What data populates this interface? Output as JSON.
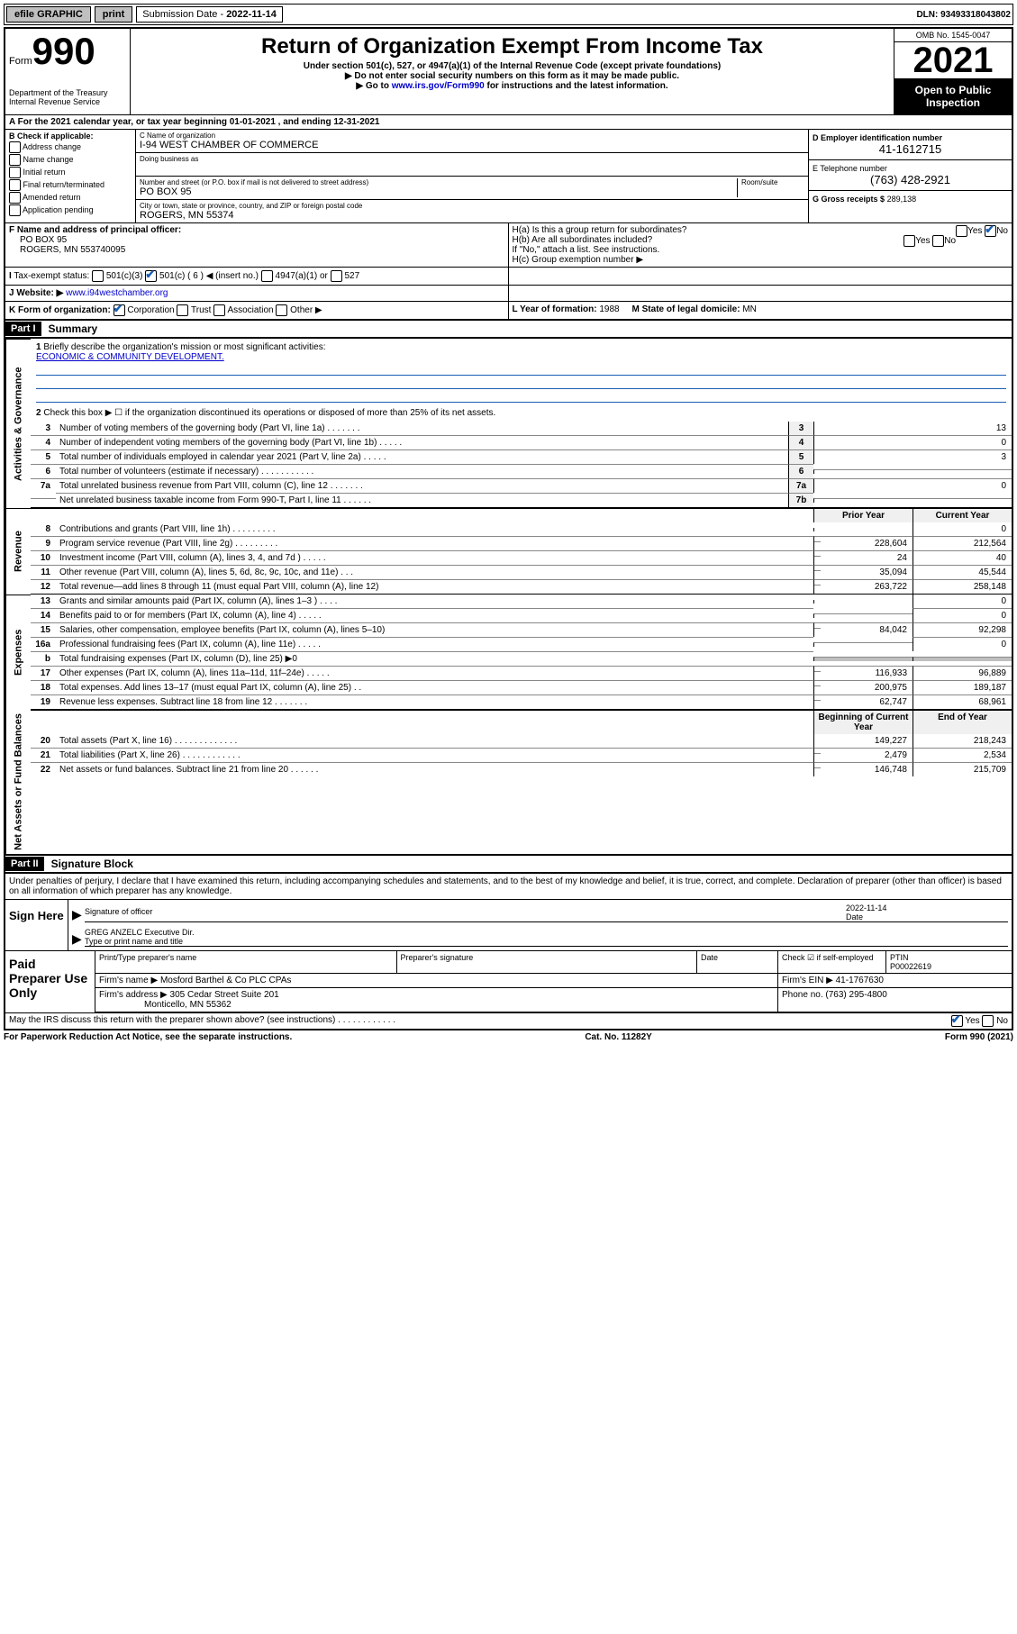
{
  "top_bar": {
    "efile": "efile GRAPHIC",
    "print": "print",
    "submission_label": "Submission Date",
    "submission_date": "2022-11-14",
    "dln_label": "DLN:",
    "dln": "93493318043802"
  },
  "header": {
    "form_word": "Form",
    "form_num": "990",
    "dept": "Department of the Treasury",
    "irs": "Internal Revenue Service",
    "title": "Return of Organization Exempt From Income Tax",
    "sub1": "Under section 501(c), 527, or 4947(a)(1) of the Internal Revenue Code (except private foundations)",
    "sub2": "▶ Do not enter social security numbers on this form as it may be made public.",
    "sub3_pre": "▶ Go to ",
    "sub3_link": "www.irs.gov/Form990",
    "sub3_post": " for instructions and the latest information.",
    "omb": "OMB No. 1545-0047",
    "year": "2021",
    "inspect": "Open to Public Inspection"
  },
  "section_a": {
    "line": "For the 2021 calendar year, or tax year beginning 01-01-2021   , and ending 12-31-2021",
    "b_label": "B Check if applicable:",
    "checks": [
      "Address change",
      "Name change",
      "Initial return",
      "Final return/terminated",
      "Amended return",
      "Application pending"
    ],
    "c_name_label": "C Name of organization",
    "c_name": "I-94 WEST CHAMBER OF COMMERCE",
    "dba_label": "Doing business as",
    "street_label": "Number and street (or P.O. box if mail is not delivered to street address)",
    "room_label": "Room/suite",
    "street": "PO BOX 95",
    "city_label": "City or town, state or province, country, and ZIP or foreign postal code",
    "city": "ROGERS, MN  55374",
    "d_label": "D Employer identification number",
    "d_val": "41-1612715",
    "e_label": "E Telephone number",
    "e_val": "(763) 428-2921",
    "g_label": "G Gross receipts $",
    "g_val": "289,138",
    "f_label": "F Name and address of principal officer:",
    "f_addr1": "PO BOX 95",
    "f_addr2": "ROGERS, MN  553740095",
    "ha": "H(a)  Is this a group return for subordinates?",
    "hb": "H(b)  Are all subordinates included?",
    "h_note": "If \"No,\" attach a list. See instructions.",
    "hc": "H(c)  Group exemption number ▶",
    "yes": "Yes",
    "no": "No",
    "i_label": "Tax-exempt status:",
    "i_501c3": "501(c)(3)",
    "i_501c": "501(c) ( 6 ) ◀ (insert no.)",
    "i_4947": "4947(a)(1) or",
    "i_527": "527",
    "j_label": "Website: ▶",
    "j_val": "www.i94westchamber.org",
    "k_label": "K Form of organization:",
    "k_opts": [
      "Corporation",
      "Trust",
      "Association",
      "Other ▶"
    ],
    "l_label": "L Year of formation:",
    "l_val": "1988",
    "m_label": "M State of legal domicile:",
    "m_val": "MN"
  },
  "part1": {
    "label": "Part I",
    "title": "Summary",
    "q1": "Briefly describe the organization's mission or most significant activities:",
    "mission": "ECONOMIC & COMMUNITY DEVELOPMENT.",
    "q2": "Check this box ▶ ☐  if the organization discontinued its operations or disposed of more than 25% of its net assets.",
    "vlabels": {
      "gov": "Activities & Governance",
      "rev": "Revenue",
      "exp": "Expenses",
      "net": "Net Assets or Fund Balances"
    },
    "col_prior": "Prior Year",
    "col_current": "Current Year",
    "col_begin": "Beginning of Current Year",
    "col_end": "End of Year",
    "lines_gov": [
      {
        "n": "3",
        "t": "Number of voting members of the governing body (Part VI, line 1a)   .   .   .   .   .   .   .",
        "box": "3",
        "v": "13"
      },
      {
        "n": "4",
        "t": "Number of independent voting members of the governing body (Part VI, line 1b)   .   .   .   .   .",
        "box": "4",
        "v": "0"
      },
      {
        "n": "5",
        "t": "Total number of individuals employed in calendar year 2021 (Part V, line 2a)   .   .   .   .   .",
        "box": "5",
        "v": "3"
      },
      {
        "n": "6",
        "t": "Total number of volunteers (estimate if necessary)   .   .   .   .   .   .   .   .   .   .   .",
        "box": "6",
        "v": ""
      },
      {
        "n": "7a",
        "t": "Total unrelated business revenue from Part VIII, column (C), line 12   .   .   .   .   .   .   .",
        "box": "7a",
        "v": "0"
      },
      {
        "n": "",
        "t": "Net unrelated business taxable income from Form 990-T, Part I, line 11   .   .   .   .   .   .",
        "box": "7b",
        "v": ""
      }
    ],
    "lines_rev": [
      {
        "n": "8",
        "t": "Contributions and grants (Part VIII, line 1h)   .   .   .   .   .   .   .   .   .",
        "p": "",
        "c": "0"
      },
      {
        "n": "9",
        "t": "Program service revenue (Part VIII, line 2g)   .   .   .   .   .   .   .   .   .",
        "p": "228,604",
        "c": "212,564"
      },
      {
        "n": "10",
        "t": "Investment income (Part VIII, column (A), lines 3, 4, and 7d )   .   .   .   .   .",
        "p": "24",
        "c": "40"
      },
      {
        "n": "11",
        "t": "Other revenue (Part VIII, column (A), lines 5, 6d, 8c, 9c, 10c, and 11e)   .   .   .",
        "p": "35,094",
        "c": "45,544"
      },
      {
        "n": "12",
        "t": "Total revenue—add lines 8 through 11 (must equal Part VIII, column (A), line 12)",
        "p": "263,722",
        "c": "258,148"
      }
    ],
    "lines_exp": [
      {
        "n": "13",
        "t": "Grants and similar amounts paid (Part IX, column (A), lines 1–3 )   .   .   .   .",
        "p": "",
        "c": "0"
      },
      {
        "n": "14",
        "t": "Benefits paid to or for members (Part IX, column (A), line 4)   .   .   .   .   .",
        "p": "",
        "c": "0"
      },
      {
        "n": "15",
        "t": "Salaries, other compensation, employee benefits (Part IX, column (A), lines 5–10)",
        "p": "84,042",
        "c": "92,298"
      },
      {
        "n": "16a",
        "t": "Professional fundraising fees (Part IX, column (A), line 11e)   .   .   .   .   .",
        "p": "",
        "c": "0"
      },
      {
        "n": "b",
        "t": "Total fundraising expenses (Part IX, column (D), line 25) ▶0",
        "p": "shade",
        "c": "shade"
      },
      {
        "n": "17",
        "t": "Other expenses (Part IX, column (A), lines 11a–11d, 11f–24e)   .   .   .   .   .",
        "p": "116,933",
        "c": "96,889"
      },
      {
        "n": "18",
        "t": "Total expenses. Add lines 13–17 (must equal Part IX, column (A), line 25)   .   .",
        "p": "200,975",
        "c": "189,187"
      },
      {
        "n": "19",
        "t": "Revenue less expenses. Subtract line 18 from line 12   .   .   .   .   .   .   .",
        "p": "62,747",
        "c": "68,961"
      }
    ],
    "lines_net": [
      {
        "n": "20",
        "t": "Total assets (Part X, line 16)   .   .   .   .   .   .   .   .   .   .   .   .   .",
        "p": "149,227",
        "c": "218,243"
      },
      {
        "n": "21",
        "t": "Total liabilities (Part X, line 26)   .   .   .   .   .   .   .   .   .   .   .   .",
        "p": "2,479",
        "c": "2,534"
      },
      {
        "n": "22",
        "t": "Net assets or fund balances. Subtract line 21 from line 20   .   .   .   .   .   .",
        "p": "146,748",
        "c": "215,709"
      }
    ]
  },
  "part2": {
    "label": "Part II",
    "title": "Signature Block",
    "penalty": "Under penalties of perjury, I declare that I have examined this return, including accompanying schedules and statements, and to the best of my knowledge and belief, it is true, correct, and complete. Declaration of preparer (other than officer) is based on all information of which preparer has any knowledge.",
    "sign_here": "Sign Here",
    "sig_officer": "Signature of officer",
    "sig_date_val": "2022-11-14",
    "sig_date": "Date",
    "sig_name": "GREG ANZELC  Executive Dir.",
    "sig_name_label": "Type or print name and title",
    "paid_prep": "Paid Preparer Use Only",
    "prep_headers": [
      "Print/Type preparer's name",
      "Preparer's signature",
      "Date",
      "",
      "PTIN"
    ],
    "prep_check": "Check ☑ if self-employed",
    "prep_ptin": "P00022619",
    "firm_name_label": "Firm's name    ▶",
    "firm_name": "Mosford Barthel & Co PLC CPAs",
    "firm_ein_label": "Firm's EIN ▶",
    "firm_ein": "41-1767630",
    "firm_addr_label": "Firm's address ▶",
    "firm_addr1": "305 Cedar Street Suite 201",
    "firm_addr2": "Monticello, MN  55362",
    "firm_phone_label": "Phone no.",
    "firm_phone": "(763) 295-4800",
    "discuss": "May the IRS discuss this return with the preparer shown above? (see instructions)   .   .   .   .   .   .   .   .   .   .   .   ."
  },
  "footer": {
    "notice": "For Paperwork Reduction Act Notice, see the separate instructions.",
    "cat": "Cat. No. 11282Y",
    "form": "Form 990 (2021)"
  }
}
